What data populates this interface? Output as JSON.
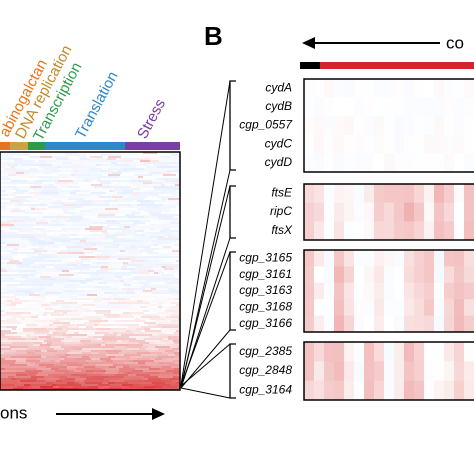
{
  "panel_a": {
    "categories": [
      "abinogalctan",
      "DNA replication",
      "Transcription",
      "Translation",
      "Stress"
    ],
    "x_label": "ons"
  },
  "panel_b": {
    "label": "B",
    "arrow_label": "co",
    "groups": [
      {
        "genes": [
          "cydA",
          "cydB",
          "cgp_0557",
          "cydC",
          "cydD"
        ]
      },
      {
        "genes": [
          "ftsE",
          "ripC",
          "ftsX"
        ]
      },
      {
        "genes": [
          "cgp_3165",
          "cgp_3161",
          "cgp_3163",
          "cgp_3168",
          "cgp_3166"
        ]
      },
      {
        "genes": [
          "cgp_2385",
          "cgp_2848",
          "cgp_3164"
        ]
      }
    ]
  }
}
